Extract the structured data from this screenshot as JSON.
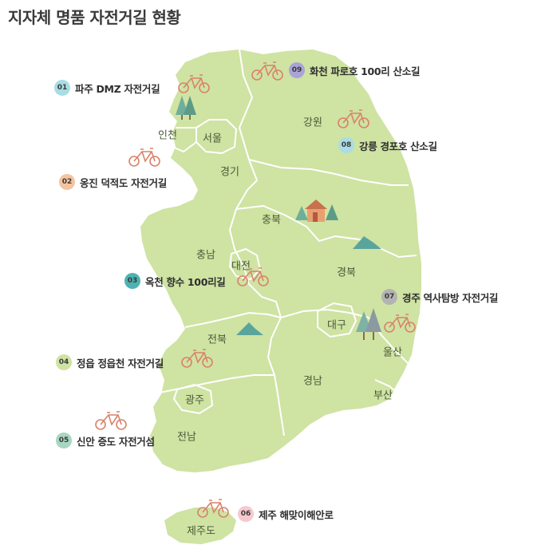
{
  "title": "지자체 명품 자전거길 현황",
  "colors": {
    "land": "#cfe3a3",
    "border": "#ffffff",
    "bike": "#d9826a",
    "tree": "#6fae9a",
    "mountain": "#5aa59b"
  },
  "regions": {
    "incheon": "인천",
    "seoul": "서울",
    "gyeonggi": "경기",
    "gangwon": "강원",
    "chungbuk": "충북",
    "chungnam": "충남",
    "daejeon": "대전",
    "gyeongbuk": "경북",
    "daegu": "대구",
    "jeonbuk": "전북",
    "ulsan": "울산",
    "gyeongnam": "경남",
    "busan": "부산",
    "gwangju": "광주",
    "jeonnam": "전남",
    "jeju": "제주도"
  },
  "routes": [
    {
      "num": "01",
      "name": "파주 DMZ 자전거길",
      "color": "#a9dde3"
    },
    {
      "num": "02",
      "name": "옹진 덕적도 자전거길",
      "color": "#f4c4a0"
    },
    {
      "num": "03",
      "name": "옥천 향수 100리길",
      "color": "#4db3b0"
    },
    {
      "num": "04",
      "name": "정읍 정읍천 자전거길",
      "color": "#cfe3a3"
    },
    {
      "num": "05",
      "name": "신안 증도 자전거섬",
      "color": "#a7d6c3"
    },
    {
      "num": "06",
      "name": "제주 해맞이해안로",
      "color": "#f6c9cf"
    },
    {
      "num": "07",
      "name": "경주 역사탐방 자전거길",
      "color": "#b3b3b3"
    },
    {
      "num": "08",
      "name": "강릉 경포호 산소길",
      "color": "#a9dde3"
    },
    {
      "num": "09",
      "name": "화천 파로호 100리 산소길",
      "color": "#a9a3d8"
    }
  ]
}
